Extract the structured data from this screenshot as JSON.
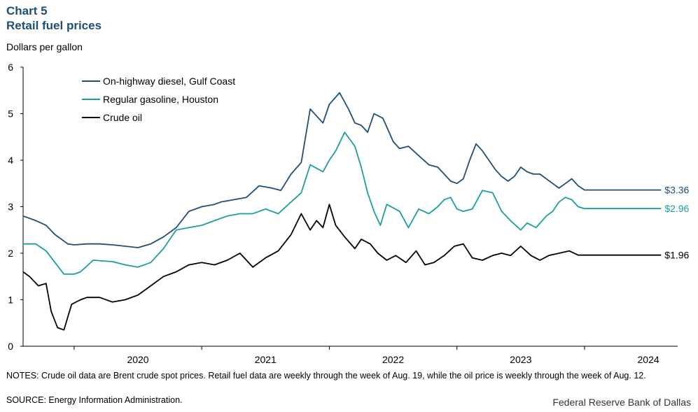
{
  "header": {
    "chart_label": "Chart 5",
    "title": "Retail fuel prices",
    "unit": "Dollars per gallon"
  },
  "footer": {
    "notes": "NOTES: Crude oil data are Brent crude spot prices. Retail fuel data are weekly through the week of Aug. 19, while the oil price is weekly through the week of Aug. 12.",
    "source": "SOURCE: Energy Information Administration.",
    "credit": "Federal Reserve Bank of Dallas"
  },
  "colors": {
    "diesel": "#1f4e79",
    "gasoline": "#1a9e9e",
    "crude": "#000000",
    "axis": "#000000"
  },
  "chart_data": {
    "type": "line",
    "ylim": [
      0,
      6
    ],
    "yticks": [
      0,
      1,
      2,
      3,
      4,
      5,
      6
    ],
    "xlim": [
      2019.6,
      2024.73
    ],
    "xtick_labels": [
      "2020",
      "2021",
      "2022",
      "2023",
      "2024"
    ],
    "grid": false,
    "legend_position": "top-left",
    "series": [
      {
        "name": "On-highway diesel, Gulf Coast",
        "color_key": "diesel",
        "end_label": "$3.36",
        "x": [
          2019.6,
          2019.7,
          2019.78,
          2019.85,
          2019.95,
          2020.0,
          2020.1,
          2020.2,
          2020.3,
          2020.4,
          2020.5,
          2020.6,
          2020.7,
          2020.8,
          2020.9,
          2021.0,
          2021.1,
          2021.15,
          2021.25,
          2021.35,
          2021.45,
          2021.55,
          2021.62,
          2021.7,
          2021.78,
          2021.85,
          2021.95,
          2022.0,
          2022.08,
          2022.15,
          2022.2,
          2022.25,
          2022.3,
          2022.35,
          2022.42,
          2022.5,
          2022.55,
          2022.62,
          2022.7,
          2022.78,
          2022.85,
          2022.9,
          2022.95,
          2023.0,
          2023.05,
          2023.1,
          2023.15,
          2023.2,
          2023.25,
          2023.3,
          2023.35,
          2023.4,
          2023.45,
          2023.5,
          2023.55,
          2023.6,
          2023.65,
          2023.7,
          2023.75,
          2023.8,
          2023.85,
          2023.9,
          2023.95,
          2024.0,
          2024.05,
          2024.1,
          2024.15,
          2024.2,
          2024.25,
          2024.3,
          2024.35,
          2024.4,
          2024.45,
          2024.5,
          2024.55,
          2024.6
        ],
        "values": [
          2.8,
          2.7,
          2.6,
          2.4,
          2.2,
          2.18,
          2.2,
          2.2,
          2.18,
          2.15,
          2.12,
          2.2,
          2.35,
          2.55,
          2.9,
          3.0,
          3.05,
          3.1,
          3.15,
          3.2,
          3.45,
          3.4,
          3.35,
          3.7,
          3.95,
          5.1,
          4.8,
          5.2,
          5.45,
          5.1,
          4.8,
          4.75,
          4.6,
          5.0,
          4.9,
          4.4,
          4.25,
          4.3,
          4.1,
          3.9,
          3.85,
          3.7,
          3.55,
          3.5,
          3.6,
          4.0,
          4.35,
          4.2,
          4.0,
          3.8,
          3.65,
          3.55,
          3.65,
          3.85,
          3.75,
          3.7,
          3.7,
          3.6,
          3.5,
          3.4,
          3.5,
          3.6,
          3.45,
          3.36,
          3.36,
          3.36,
          3.36,
          3.36,
          3.36,
          3.36,
          3.36,
          3.36,
          3.36,
          3.36,
          3.36,
          3.36
        ]
      },
      {
        "name": "Regular gasoline, Houston",
        "color_key": "gasoline",
        "end_label": "$2.96",
        "x": [
          2019.6,
          2019.7,
          2019.78,
          2019.85,
          2019.92,
          2020.0,
          2020.05,
          2020.15,
          2020.3,
          2020.4,
          2020.5,
          2020.6,
          2020.7,
          2020.8,
          2020.9,
          2021.0,
          2021.1,
          2021.2,
          2021.3,
          2021.4,
          2021.5,
          2021.6,
          2021.7,
          2021.78,
          2021.85,
          2021.95,
          2022.0,
          2022.05,
          2022.12,
          2022.2,
          2022.25,
          2022.3,
          2022.35,
          2022.4,
          2022.45,
          2022.55,
          2022.62,
          2022.7,
          2022.78,
          2022.85,
          2022.9,
          2022.95,
          2023.0,
          2023.05,
          2023.12,
          2023.2,
          2023.28,
          2023.35,
          2023.42,
          2023.5,
          2023.55,
          2023.62,
          2023.7,
          2023.75,
          2023.8,
          2023.85,
          2023.9,
          2023.95,
          2024.0,
          2024.05,
          2024.1,
          2024.2,
          2024.3,
          2024.4,
          2024.5,
          2024.6
        ],
        "values": [
          2.2,
          2.2,
          2.05,
          1.8,
          1.55,
          1.55,
          1.6,
          1.85,
          1.82,
          1.75,
          1.7,
          1.8,
          2.1,
          2.5,
          2.55,
          2.6,
          2.7,
          2.8,
          2.85,
          2.85,
          2.95,
          2.85,
          3.1,
          3.3,
          3.9,
          3.75,
          4.0,
          4.2,
          4.6,
          4.3,
          3.85,
          3.3,
          2.9,
          2.6,
          3.05,
          2.9,
          2.55,
          2.95,
          2.85,
          3.0,
          3.15,
          3.2,
          2.95,
          2.9,
          2.95,
          3.35,
          3.3,
          2.9,
          2.7,
          2.5,
          2.65,
          2.55,
          2.8,
          2.9,
          3.1,
          3.2,
          3.15,
          3.0,
          2.96,
          2.96,
          2.96,
          2.96,
          2.96,
          2.96,
          2.96,
          2.96
        ]
      },
      {
        "name": "Crude oil",
        "color_key": "crude",
        "end_label": "$1.96",
        "x": [
          2019.6,
          2019.65,
          2019.72,
          2019.78,
          2019.82,
          2019.87,
          2019.92,
          2019.98,
          2020.05,
          2020.1,
          2020.2,
          2020.3,
          2020.4,
          2020.5,
          2020.6,
          2020.7,
          2020.8,
          2020.9,
          2021.0,
          2021.1,
          2021.2,
          2021.3,
          2021.4,
          2021.5,
          2021.6,
          2021.7,
          2021.78,
          2021.85,
          2021.9,
          2021.95,
          2022.0,
          2022.05,
          2022.12,
          2022.2,
          2022.25,
          2022.32,
          2022.38,
          2022.45,
          2022.52,
          2022.6,
          2022.68,
          2022.75,
          2022.82,
          2022.9,
          2022.98,
          2023.05,
          2023.12,
          2023.2,
          2023.28,
          2023.35,
          2023.42,
          2023.5,
          2023.58,
          2023.65,
          2023.72,
          2023.8,
          2023.88,
          2023.95,
          2024.02,
          2024.1,
          2024.18,
          2024.25,
          2024.32,
          2024.4,
          2024.5,
          2024.6
        ],
        "values": [
          1.6,
          1.5,
          1.3,
          1.35,
          0.75,
          0.4,
          0.35,
          0.9,
          1.0,
          1.05,
          1.05,
          0.95,
          1.0,
          1.1,
          1.3,
          1.5,
          1.6,
          1.75,
          1.8,
          1.75,
          1.85,
          2.0,
          1.7,
          1.9,
          2.05,
          2.4,
          2.85,
          2.5,
          2.7,
          2.55,
          3.05,
          2.6,
          2.35,
          2.1,
          2.3,
          2.2,
          2.0,
          1.85,
          1.95,
          1.8,
          2.05,
          1.75,
          1.8,
          1.95,
          2.15,
          2.2,
          1.9,
          1.85,
          1.95,
          2.0,
          1.95,
          2.15,
          1.95,
          1.85,
          1.95,
          2.0,
          2.05,
          1.96,
          1.96,
          1.96,
          1.96,
          1.96,
          1.96,
          1.96,
          1.96,
          1.96
        ]
      }
    ]
  }
}
